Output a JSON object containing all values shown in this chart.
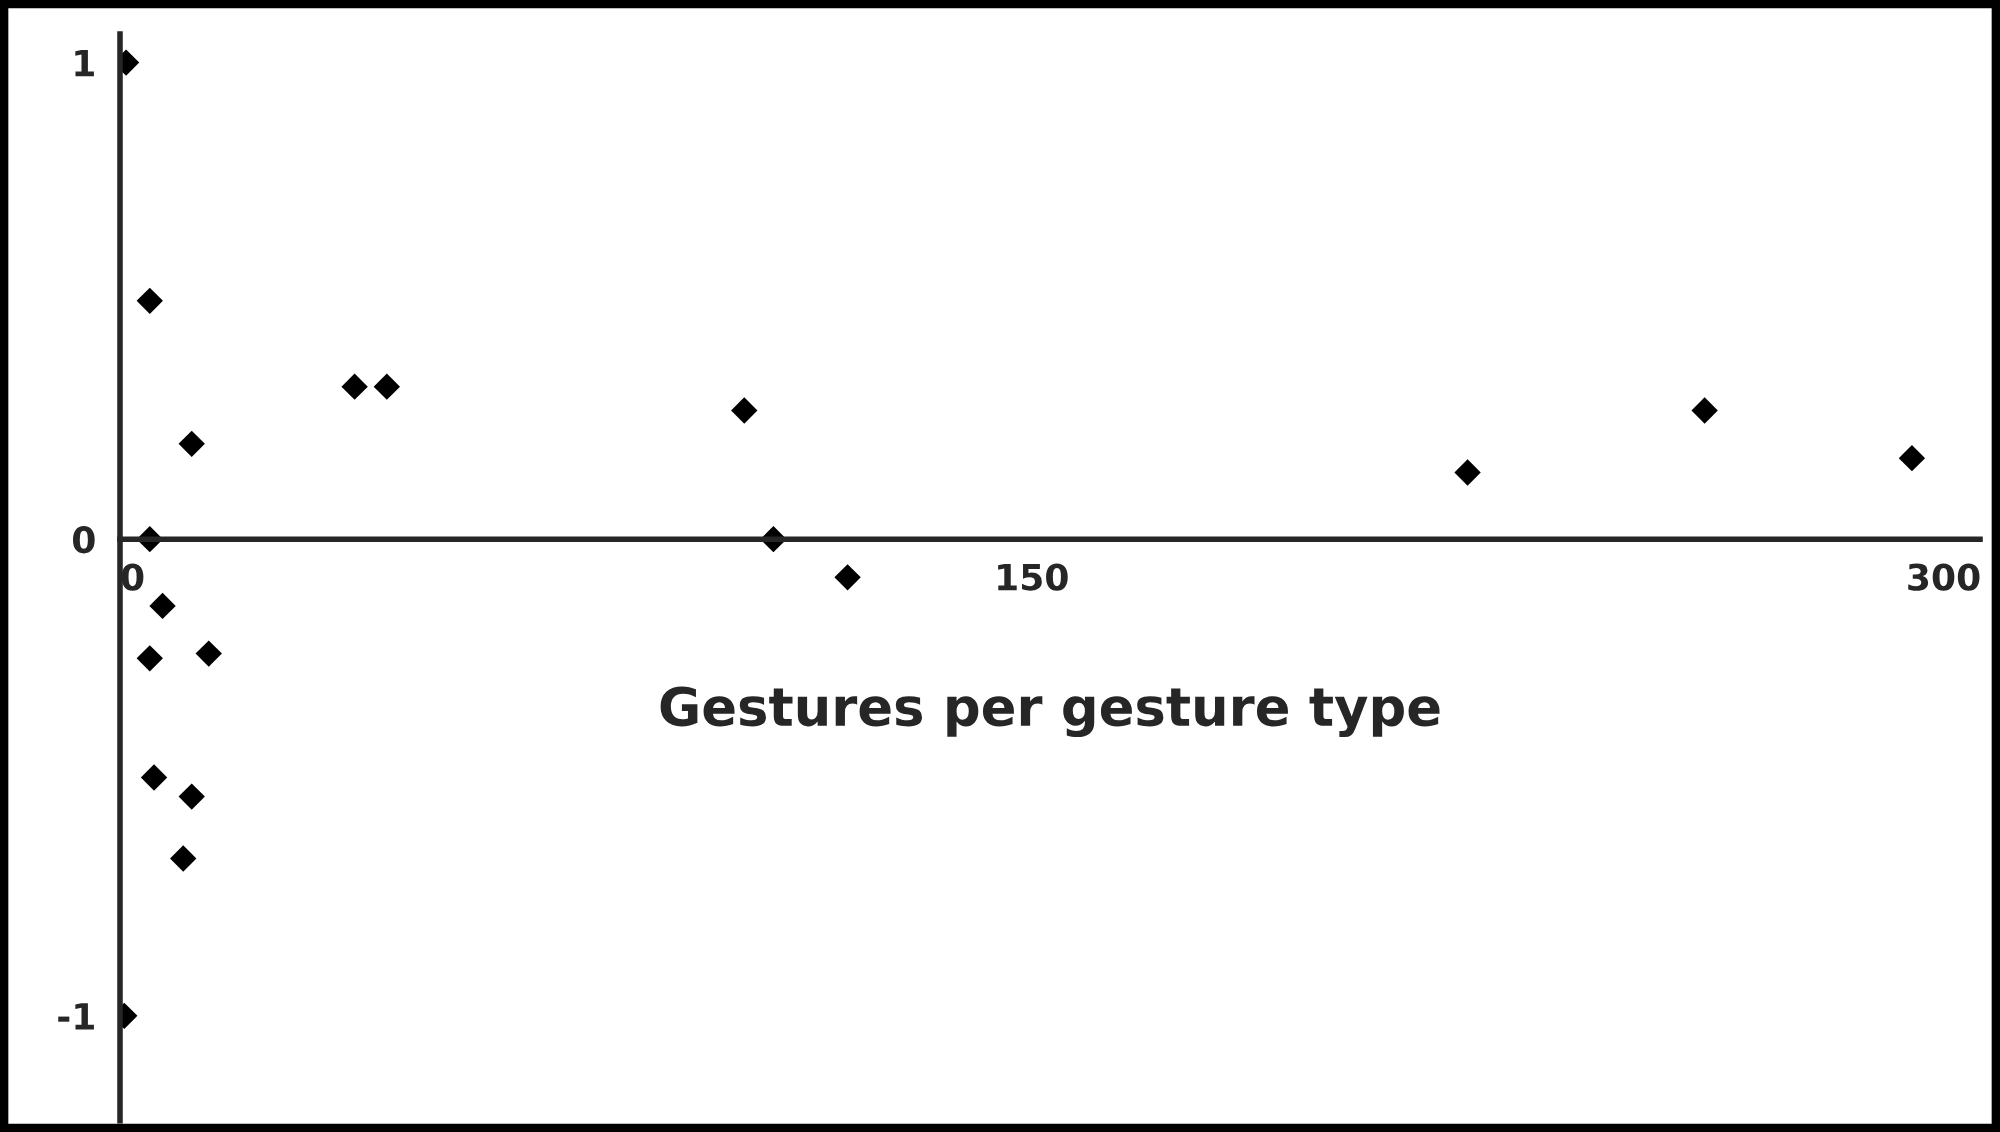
{
  "chart_data": {
    "type": "scatter",
    "xlabel": "Gestures per gesture type",
    "x": [
      1,
      4.9,
      11.8,
      4.9,
      7,
      4.9,
      14.6,
      5.6,
      11.8,
      10.4,
      0.7,
      38.6,
      43.9,
      102.7,
      107.5,
      119.7,
      221.7,
      260.7,
      294.8
    ],
    "series": [
      {
        "color": "#000000",
        "values": [
          1,
          0.5,
          0.2,
          0,
          -0.14,
          -0.25,
          -0.24,
          -0.5,
          -0.54,
          -0.67,
          -1,
          0.32,
          0.32,
          0.27,
          0,
          -0.08,
          0.14,
          0.27,
          0.17
        ]
      }
    ],
    "marker": "diamond",
    "grid": false,
    "xlim": [
      0,
      306
    ],
    "ylim": [
      -1.22,
      1.06
    ],
    "xticks": [
      0,
      150,
      300
    ],
    "yticks": [
      -1,
      0,
      1
    ]
  }
}
